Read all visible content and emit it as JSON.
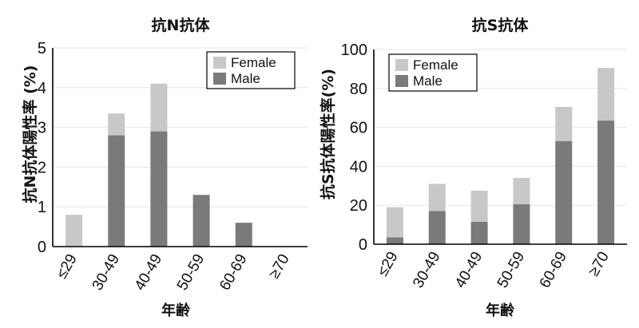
{
  "chart_data": [
    {
      "type": "bar",
      "stacked": true,
      "title": "抗N抗体",
      "xlabel": "年齢",
      "ylabel": "抗N抗体陽性率 (%)",
      "categories": [
        "≤29",
        "30-49",
        "40-49",
        "50-59",
        "60-69",
        "≥70"
      ],
      "ylim": [
        0,
        5
      ],
      "yticks": [
        0,
        1,
        2,
        3,
        4,
        5
      ],
      "grid": true,
      "legend": "top-right",
      "series": [
        {
          "name": "Male",
          "color": "#7a7a7a",
          "values": [
            0,
            2.8,
            2.9,
            1.3,
            0.6,
            0
          ]
        },
        {
          "name": "Female",
          "color": "#c8c8c8",
          "values": [
            0.8,
            0.55,
            1.2,
            0,
            0,
            0
          ]
        }
      ]
    },
    {
      "type": "bar",
      "stacked": true,
      "title": "抗S抗体",
      "xlabel": "年齢",
      "ylabel": "抗S抗体陽性率(%)",
      "categories": [
        "≤29",
        "30-49",
        "40-49",
        "50-59",
        "60-69",
        "≥70"
      ],
      "ylim": [
        0,
        100
      ],
      "yticks": [
        0,
        20,
        40,
        60,
        80,
        100
      ],
      "grid": true,
      "legend": "top-left",
      "series": [
        {
          "name": "Male",
          "color": "#7a7a7a",
          "values": [
            3.5,
            17,
            11.5,
            20.5,
            53,
            63.5
          ]
        },
        {
          "name": "Female",
          "color": "#c8c8c8",
          "values": [
            15.5,
            14,
            16,
            13.5,
            17.5,
            27
          ]
        }
      ]
    }
  ]
}
